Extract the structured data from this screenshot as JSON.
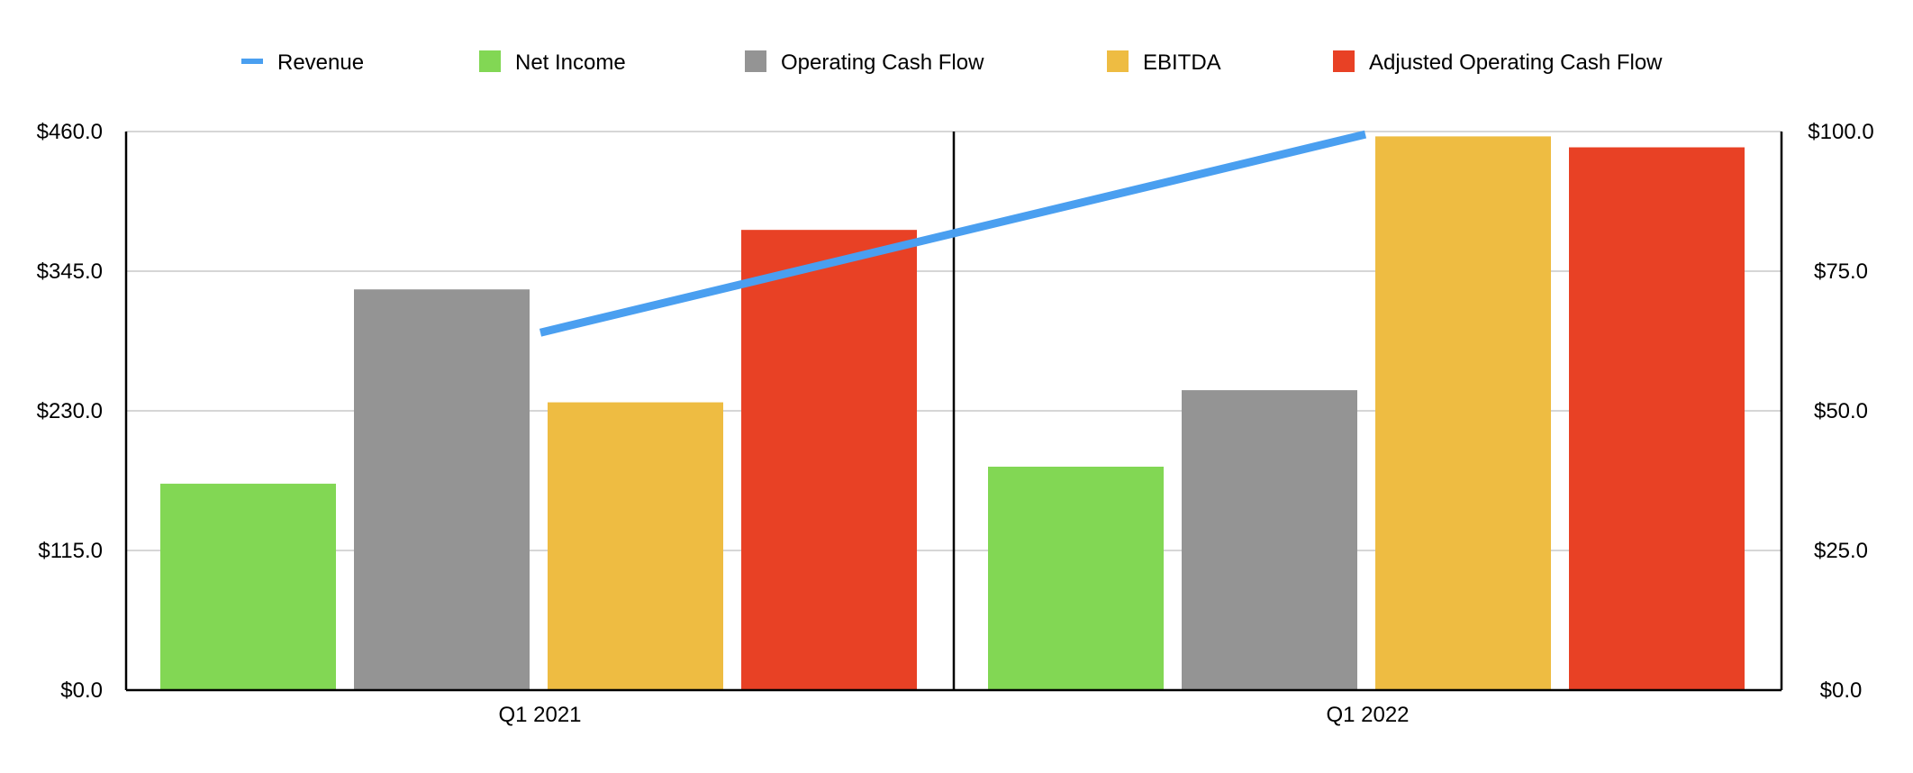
{
  "chart_data": {
    "type": "bar",
    "categories": [
      "Q1 2021",
      "Q1 2022"
    ],
    "series": [
      {
        "name": "Net Income",
        "axis": "left",
        "color": "#82D754",
        "values": [
          170,
          184
        ]
      },
      {
        "name": "Operating Cash Flow",
        "axis": "left",
        "color": "#949494",
        "values": [
          330,
          247
        ]
      },
      {
        "name": "EBITDA",
        "axis": "left",
        "color": "#EEBC42",
        "values": [
          237,
          456
        ]
      },
      {
        "name": "Adjusted Operating Cash Flow",
        "axis": "left",
        "color": "#E84125",
        "values": [
          379,
          447
        ]
      }
    ],
    "line_series": [
      {
        "name": "Revenue",
        "axis": "right",
        "color": "#4A9FF0",
        "values": [
          64,
          99.5
        ]
      }
    ],
    "legend": {
      "placement": "top-center",
      "items": [
        {
          "name": "Revenue",
          "marker": "line",
          "color": "#4A9FF0"
        },
        {
          "name": "Net Income",
          "marker": "square",
          "color": "#82D754"
        },
        {
          "name": "Operating Cash Flow",
          "marker": "square",
          "color": "#949494"
        },
        {
          "name": "EBITDA",
          "marker": "square",
          "color": "#EEBC42"
        },
        {
          "name": "Adjusted Operating Cash Flow",
          "marker": "square",
          "color": "#E84125"
        }
      ]
    },
    "left_axis": {
      "min": 0,
      "max": 460,
      "ticks": [
        "$0.0",
        "$115.0",
        "$230.0",
        "$345.0",
        "$460.0"
      ]
    },
    "right_axis": {
      "min": 0,
      "max": 100,
      "ticks": [
        "$0.0",
        "$25.0",
        "$50.0",
        "$75.0",
        "$100.0"
      ]
    },
    "grid": true,
    "title": "",
    "xlabel": "",
    "ylabel": ""
  }
}
